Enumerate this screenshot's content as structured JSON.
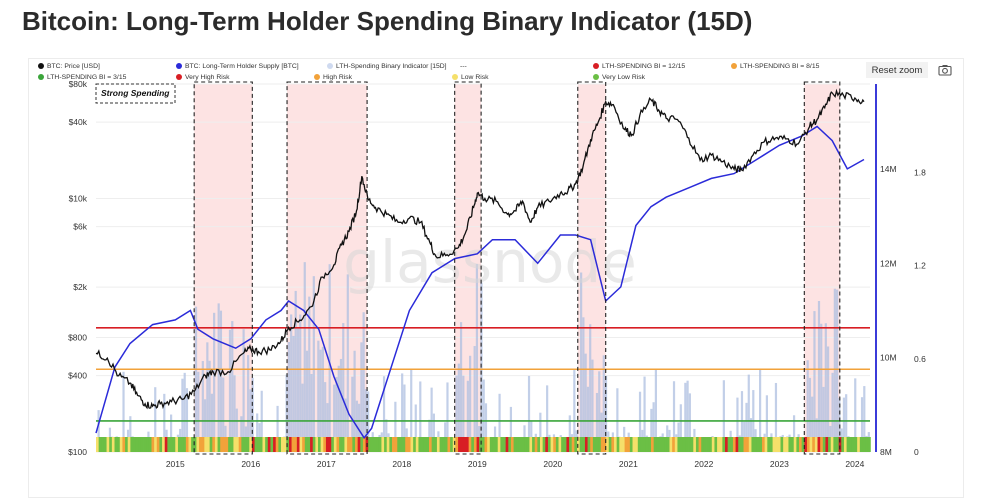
{
  "page": {
    "title": "Bitcoin: Long-Term Holder Spending Binary Indicator (15D)",
    "reset_zoom_label": "Reset zoom",
    "camera_icon": "camera-icon"
  },
  "colors": {
    "price": "#111111",
    "supply": "#2b2bd9",
    "indicator": "#aebfe0",
    "very_high": "#d81e24",
    "high": "#f2a23a",
    "low": "#f5e06a",
    "very_low": "#6bbf45",
    "highlight_fill": "#fde3e3"
  },
  "legend": [
    {
      "label": "BTC: Price [USD]",
      "color": "#111111"
    },
    {
      "label": "BTC: Long-Term Holder Supply [BTC]",
      "color": "#2b2bd9"
    },
    {
      "label": "LTH-Spending Binary Indicator [15D]",
      "color": "#cfdaf0"
    },
    {
      "label": "---",
      "color": ""
    },
    {
      "label": "LTH-SPENDING BI = 12/15",
      "color": "#d81e24"
    },
    {
      "label": "LTH-SPENDING BI = 8/15",
      "color": "#f2a23a"
    },
    {
      "label": "LTH-SPENDING BI = 3/15",
      "color": "#3aa53a"
    },
    {
      "label": "Very High Risk",
      "color": "#d81e24"
    },
    {
      "label": "High Risk",
      "color": "#f2a23a"
    },
    {
      "label": "Low Risk",
      "color": "#f5e06a"
    },
    {
      "label": "Very Low Risk",
      "color": "#6bbf45"
    }
  ],
  "annotation": "Strong Spending",
  "watermark": "glassnode",
  "chart_data": {
    "type": "line",
    "x_axis": {
      "ticks": [
        "2015",
        "2016",
        "2017",
        "2018",
        "2019",
        "2020",
        "2021",
        "2022",
        "2023",
        "2024"
      ],
      "range": [
        2014.45,
        2024.7
      ]
    },
    "y_left": {
      "label": "Price [USD]",
      "scale": "log",
      "ticks": [
        "$100",
        "$400",
        "$800",
        "$2k",
        "$6k",
        "$10k",
        "$40k",
        "$80k"
      ],
      "tick_values": [
        100,
        400,
        800,
        2000,
        6000,
        10000,
        40000,
        80000
      ],
      "range": [
        100,
        80000
      ]
    },
    "y_right_supply": {
      "ticks": [
        "8M",
        "10M",
        "12M",
        "14M"
      ],
      "tick_values": [
        8,
        10,
        12,
        14
      ],
      "range": [
        8,
        15.8
      ]
    },
    "y_right_indicator": {
      "ticks": [
        "0",
        "0.6",
        "1.2",
        "1.8"
      ],
      "tick_values": [
        0,
        0.6,
        1.2,
        1.8
      ],
      "range": [
        0,
        2.37
      ]
    },
    "thresholds": [
      {
        "name": "LTH-SPENDING BI = 12/15",
        "value": 0.8
      },
      {
        "name": "LTH-SPENDING BI = 8/15",
        "value": 0.533
      },
      {
        "name": "LTH-SPENDING BI = 3/15",
        "value": 0.2
      }
    ],
    "strong_spending_periods": [
      [
        2015.75,
        2016.52
      ],
      [
        2016.98,
        2018.04
      ],
      [
        2019.2,
        2019.55
      ],
      [
        2020.83,
        2021.2
      ],
      [
        2023.83,
        2024.3
      ]
    ],
    "series": [
      {
        "name": "BTC: Price [USD]",
        "x": [
          2014.45,
          2014.6,
          2014.75,
          2014.9,
          2015.0,
          2015.1,
          2015.2,
          2015.3,
          2015.45,
          2015.6,
          2015.75,
          2015.9,
          2016.0,
          2016.2,
          2016.4,
          2016.5,
          2016.6,
          2016.75,
          2016.9,
          2017.0,
          2017.15,
          2017.3,
          2017.45,
          2017.6,
          2017.7,
          2017.8,
          2017.9,
          2017.97,
          2018.05,
          2018.15,
          2018.3,
          2018.45,
          2018.6,
          2018.75,
          2018.87,
          2018.95,
          2019.1,
          2019.25,
          2019.35,
          2019.45,
          2019.5,
          2019.6,
          2019.75,
          2019.9,
          2020.0,
          2020.1,
          2020.2,
          2020.3,
          2020.45,
          2020.6,
          2020.7,
          2020.8,
          2020.9,
          2021.0,
          2021.1,
          2021.2,
          2021.3,
          2021.45,
          2021.55,
          2021.65,
          2021.8,
          2021.9,
          2022.0,
          2022.15,
          2022.3,
          2022.45,
          2022.6,
          2022.75,
          2022.9,
          2023.0,
          2023.15,
          2023.3,
          2023.45,
          2023.6,
          2023.75,
          2023.9,
          2024.0,
          2024.1,
          2024.2,
          2024.35,
          2024.5,
          2024.62
        ],
        "values": [
          600,
          550,
          400,
          350,
          280,
          240,
          230,
          240,
          250,
          260,
          300,
          400,
          430,
          430,
          600,
          650,
          620,
          640,
          750,
          960,
          1100,
          1400,
          2400,
          3000,
          4300,
          5500,
          8000,
          15000,
          10000,
          8500,
          7500,
          6500,
          7000,
          6500,
          4500,
          3500,
          3600,
          4100,
          5500,
          8500,
          11000,
          10000,
          9500,
          7500,
          8000,
          9500,
          6500,
          8500,
          9500,
          11000,
          11500,
          13000,
          18000,
          29000,
          40000,
          58000,
          55000,
          35000,
          32000,
          45000,
          60000,
          50000,
          43000,
          42000,
          30000,
          20000,
          22000,
          19500,
          17000,
          16800,
          22000,
          28000,
          30000,
          29500,
          27000,
          37000,
          42000,
          52000,
          68000,
          65000,
          62000,
          58000
        ]
      },
      {
        "name": "BTC: Long-Term Holder Supply [BTC]",
        "unit": "M",
        "x": [
          2014.45,
          2014.7,
          2014.9,
          2015.2,
          2015.5,
          2015.7,
          2015.8,
          2016.0,
          2016.3,
          2016.5,
          2016.7,
          2016.9,
          2017.0,
          2017.2,
          2017.4,
          2017.6,
          2017.8,
          2018.0,
          2018.1,
          2018.3,
          2018.6,
          2018.9,
          2019.0,
          2019.2,
          2019.5,
          2019.7,
          2020.0,
          2020.3,
          2020.6,
          2020.8,
          2021.0,
          2021.2,
          2021.4,
          2021.6,
          2021.8,
          2022.0,
          2022.3,
          2022.6,
          2022.9,
          2023.2,
          2023.5,
          2023.8,
          2024.0,
          2024.2,
          2024.4,
          2024.62
        ],
        "values": [
          8.4,
          9.8,
          10.3,
          10.7,
          10.8,
          11.0,
          10.6,
          10.4,
          10.2,
          10.4,
          10.8,
          11.0,
          11.2,
          11.0,
          10.6,
          9.6,
          8.8,
          8.3,
          8.5,
          9.5,
          11.0,
          11.8,
          11.9,
          12.1,
          12.2,
          12.5,
          12.5,
          12.0,
          12.6,
          12.6,
          12.5,
          11.2,
          11.5,
          12.8,
          13.2,
          13.4,
          13.6,
          13.8,
          13.9,
          14.2,
          14.5,
          14.7,
          14.9,
          14.6,
          14.0,
          14.2
        ]
      }
    ],
    "risk_bar_order": [
      "very_low",
      "low",
      "high",
      "very_high"
    ]
  }
}
